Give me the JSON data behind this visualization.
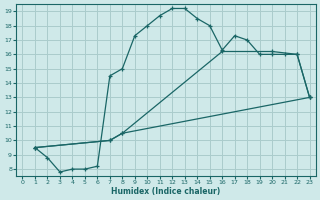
{
  "xlabel": "Humidex (Indice chaleur)",
  "ylabel": "",
  "bg_color": "#cfe9e9",
  "grid_color": "#aacccc",
  "line_color": "#1a6666",
  "xlim": [
    -0.5,
    23.5
  ],
  "ylim": [
    7.5,
    19.5
  ],
  "xticks": [
    0,
    1,
    2,
    3,
    4,
    5,
    6,
    7,
    8,
    9,
    10,
    11,
    12,
    13,
    14,
    15,
    16,
    17,
    18,
    19,
    20,
    21,
    22,
    23
  ],
  "yticks": [
    8,
    9,
    10,
    11,
    12,
    13,
    14,
    15,
    16,
    17,
    18,
    19
  ],
  "line1": {
    "x": [
      1,
      2,
      3,
      4,
      5,
      6,
      7,
      8,
      9,
      10,
      11,
      12,
      13,
      14,
      15,
      16,
      17,
      18,
      19,
      20,
      21,
      22,
      23
    ],
    "y": [
      9.5,
      8.8,
      7.8,
      8.0,
      8.0,
      8.2,
      14.5,
      15.0,
      17.3,
      18.0,
      18.7,
      19.2,
      19.2,
      18.5,
      18.0,
      16.3,
      17.3,
      17.0,
      16.0,
      16.0,
      16.0,
      16.0,
      13.0
    ]
  },
  "line2": {
    "x": [
      1,
      7,
      8,
      16,
      20,
      22,
      23
    ],
    "y": [
      9.5,
      10.0,
      10.5,
      16.2,
      16.2,
      16.0,
      13.0
    ]
  },
  "line3": {
    "x": [
      1,
      7,
      8,
      23
    ],
    "y": [
      9.5,
      10.0,
      10.5,
      13.0
    ]
  }
}
